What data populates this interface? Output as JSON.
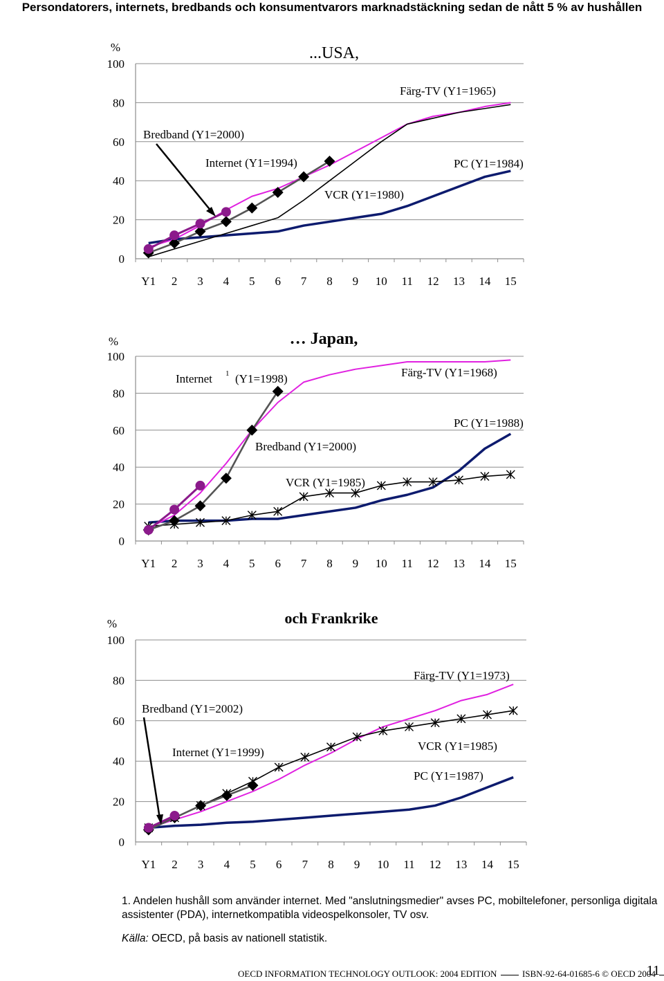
{
  "title": "Persondatorers, internets, bredbands och konsumentvarors marknadstäckning sedan de nått 5 % av hushållen",
  "footnote": "1. Andelen hushåll som använder internet. Med \"anslutningsmedier\" avses PC, mobiltelefoner, personliga digitala assistenter (PDA), internetkompatibla videospelkonsoler, TV osv.",
  "source_label": "Källa:",
  "source_text": " OECD, på basis av nationell statistik.",
  "footer": {
    "publication": "OECD INFORMATION TECHNOLOGY OUTLOOK: 2004 EDITION",
    "isbn": "ISBN-92-64-01685-6",
    "copyright": "© OECD 2004",
    "page_number": "11"
  },
  "colors": {
    "pc": "#0d1b6e",
    "internet": "#555555",
    "broadband": "#8b1a8b",
    "tv": "#e020e0",
    "vcr": "#000000"
  },
  "chart_data": [
    {
      "type": "line",
      "title": "...USA,",
      "ylabel": "%",
      "ylim": [
        0,
        100
      ],
      "ytick_labels": [
        "0",
        "20",
        "40",
        "60",
        "80",
        "100"
      ],
      "x_tick_labels": [
        "Y1",
        "2",
        "3",
        "4",
        "5",
        "6",
        "7",
        "8",
        "9",
        "10",
        "11",
        "12",
        "13",
        "14",
        "15"
      ],
      "grid": true,
      "annotations": [
        "Färg-TV (Y1=1965)",
        "Bredband (Y1=2000)",
        "Internet  (Y1=1994)",
        "PC (Y1=1984)",
        "VCR (Y1=1980)"
      ],
      "series": [
        {
          "key": "pc",
          "values": [
            8,
            10,
            11,
            12,
            13,
            14,
            17,
            19,
            21,
            23,
            27,
            32,
            37,
            42,
            45
          ]
        },
        {
          "key": "tv",
          "values": [
            6,
            10,
            17,
            25,
            32,
            36,
            42,
            48,
            55,
            62,
            69,
            73,
            75,
            78,
            80
          ]
        },
        {
          "key": "vcr",
          "values": [
            1,
            5,
            9,
            13,
            17,
            21,
            30,
            40,
            50,
            60,
            69,
            72,
            75,
            77,
            79
          ]
        },
        {
          "key": "internet",
          "values": [
            3,
            8,
            14,
            19,
            26,
            34,
            42,
            50
          ]
        },
        {
          "key": "broadband",
          "values": [
            5,
            12,
            18,
            24
          ]
        }
      ]
    },
    {
      "type": "line",
      "title": "… Japan,",
      "ylabel": "%",
      "ylim": [
        0,
        100
      ],
      "ytick_labels": [
        "0",
        "20",
        "40",
        "60",
        "80",
        "100"
      ],
      "x_tick_labels": [
        "Y1",
        "2",
        "3",
        "4",
        "5",
        "6",
        "7",
        "8",
        "9",
        "10",
        "11",
        "12",
        "13",
        "14",
        "15"
      ],
      "grid": true,
      "annotations": [
        "Internet",
        "1",
        "(Y1=1998)",
        "Färg-TV (Y1=1968)",
        "PC (Y1=1988)",
        "Bredband (Y1=2000)",
        "VCR (Y1=1985)"
      ],
      "series": [
        {
          "key": "pc",
          "values": [
            10,
            11,
            11,
            11,
            12,
            12,
            14,
            16,
            18,
            22,
            25,
            29,
            38,
            50,
            58
          ]
        },
        {
          "key": "tv",
          "values": [
            7,
            14,
            26,
            42,
            60,
            75,
            86,
            90,
            93,
            95,
            97,
            97,
            97,
            97,
            98
          ]
        },
        {
          "key": "vcr",
          "values": [
            8,
            9,
            10,
            11,
            14,
            16,
            24,
            26,
            26,
            30,
            32,
            32,
            33,
            35,
            36
          ]
        },
        {
          "key": "internet",
          "values": [
            6,
            11,
            19,
            34,
            60,
            81
          ]
        },
        {
          "key": "broadband",
          "values": [
            6,
            17,
            30
          ]
        }
      ]
    },
    {
      "type": "line",
      "title": "och Frankrike",
      "ylabel": "%",
      "ylim": [
        0,
        100
      ],
      "ytick_labels": [
        "0",
        "20",
        "40",
        "60",
        "80",
        "100"
      ],
      "x_tick_labels": [
        "Y1",
        "2",
        "3",
        "4",
        "5",
        "6",
        "7",
        "8",
        "9",
        "10",
        "11",
        "12",
        "13",
        "14",
        "15"
      ],
      "grid": true,
      "annotations": [
        "Färg-TV (Y1=1973)",
        "Bredband (Y1=2002)",
        "Internet  (Y1=1999)",
        "VCR (Y1=1985)",
        "PC (Y1=1987)"
      ],
      "series": [
        {
          "key": "pc",
          "values": [
            7,
            8,
            8.5,
            9.5,
            10,
            11,
            12,
            13,
            14,
            15,
            16,
            18,
            22,
            27,
            32
          ]
        },
        {
          "key": "tv",
          "values": [
            7,
            11,
            15,
            20,
            25,
            31,
            38,
            44,
            51,
            57,
            61,
            65,
            70,
            73,
            78
          ]
        },
        {
          "key": "vcr",
          "values": [
            7,
            12,
            18,
            24,
            30,
            37,
            42,
            47,
            52,
            55,
            57,
            59,
            61,
            63,
            65
          ]
        },
        {
          "key": "internet",
          "values": [
            6,
            12,
            18,
            23,
            28
          ]
        },
        {
          "key": "broadband",
          "values": [
            7,
            13
          ]
        }
      ]
    }
  ]
}
